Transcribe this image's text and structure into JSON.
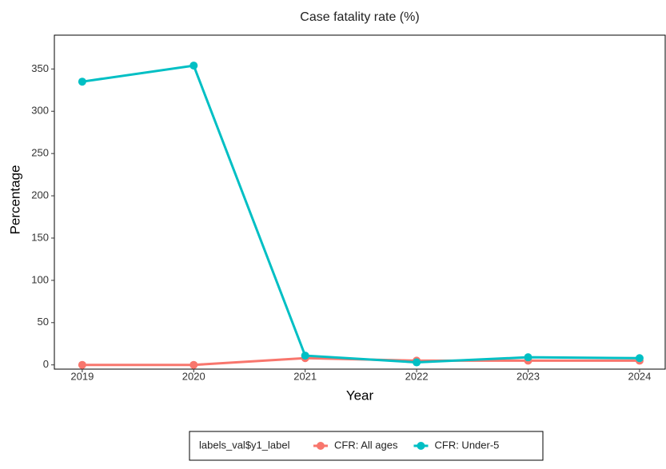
{
  "chart_data": {
    "type": "line",
    "title": "Case fatality rate (%)",
    "x_label": "Year",
    "y_label": "Percentage",
    "x": [
      2019,
      2020,
      2021,
      2022,
      2023,
      2024
    ],
    "series": [
      {
        "name": "CFR: All ages",
        "color": "#F8766D",
        "values": [
          0,
          0,
          8,
          5,
          5,
          5
        ]
      },
      {
        "name": "CFR: Under-5",
        "color": "#00BFC4",
        "values": [
          335,
          354,
          11,
          3,
          9,
          8
        ]
      }
    ],
    "legend_title": "labels_val$y1_label",
    "legend_position": "bottom",
    "xlim": [
      2018.75,
      2024.23
    ],
    "xticks": [
      2019,
      2020,
      2021,
      2022,
      2023,
      2024
    ],
    "ylim": [
      -5,
      390
    ],
    "yticks": [
      0,
      50,
      100,
      150,
      200,
      250,
      300,
      350
    ]
  }
}
